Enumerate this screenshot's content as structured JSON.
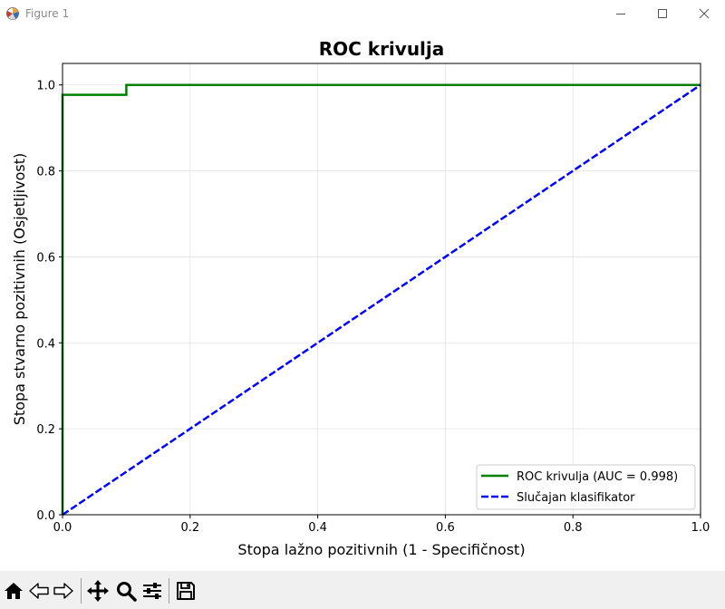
{
  "window": {
    "title": "Figure 1"
  },
  "toolbar": {
    "items": [
      "home-icon",
      "back-arrow-icon",
      "forward-arrow-icon",
      "pan-icon",
      "zoom-icon",
      "configure-subplots-icon",
      "save-icon"
    ]
  },
  "chart_data": {
    "type": "line",
    "title": "ROC krivulja",
    "xlabel": "Stopa lažno pozitivnih (1 - Specifičnost)",
    "ylabel": "Stopa stvarno pozitivnih (Osjetljivost)",
    "xlim": [
      0.0,
      1.0
    ],
    "ylim": [
      0.0,
      1.05
    ],
    "xticks": [
      "0.0",
      "0.2",
      "0.4",
      "0.6",
      "0.8",
      "1.0"
    ],
    "yticks": [
      "0.0",
      "0.2",
      "0.4",
      "0.6",
      "0.8",
      "1.0"
    ],
    "grid": true,
    "legend_position": "lower-right",
    "series": [
      {
        "name": "ROC krivulja (AUC = 0.998)",
        "color": "#008000",
        "style": "solid",
        "x": [
          0.0,
          0.0,
          0.1,
          0.1,
          1.0
        ],
        "y": [
          0.0,
          0.977,
          0.977,
          1.0,
          1.0
        ]
      },
      {
        "name": "Slučajan klasifikator",
        "color": "#0000ff",
        "style": "dashed",
        "x": [
          0.0,
          1.0
        ],
        "y": [
          0.0,
          1.0
        ]
      }
    ]
  }
}
